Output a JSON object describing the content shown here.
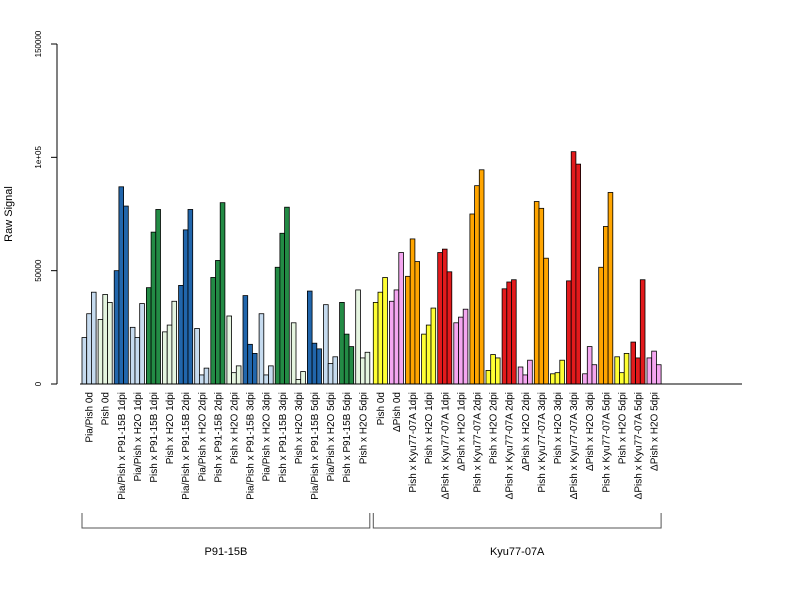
{
  "chart_data": {
    "type": "bar",
    "ylabel": "Raw Signal",
    "ylim": [
      0,
      150000
    ],
    "y_ticks": [
      {
        "value": 0,
        "label": "0"
      },
      {
        "value": 50000,
        "label": "50000"
      },
      {
        "value": 100000,
        "label": "1e+05"
      },
      {
        "value": 150000,
        "label": "150000"
      }
    ],
    "bar_border_color": "#000000",
    "groups": [
      {
        "label": "P91-15B",
        "categories": [
          {
            "label": "Pia/Pish 0d",
            "color": "#c6dbef",
            "values": [
              20500,
              31000,
              40500
            ]
          },
          {
            "label": "Pish 0d",
            "color": "#e5f5e0",
            "values": [
              28500,
              39500,
              36000
            ]
          },
          {
            "label": "Pia/Pish x P91-15B 1dpi",
            "color": "#2166ac",
            "values": [
              50000,
              87000,
              78500
            ]
          },
          {
            "label": "Pia/Pish x H2O 1dpi",
            "color": "#c6dbef",
            "values": [
              25000,
              20500,
              35500
            ]
          },
          {
            "label": "Pish x P91-15B 1dpi",
            "color": "#238b45",
            "values": [
              42500,
              67000,
              77000
            ]
          },
          {
            "label": "Pish x H2O 1dpi",
            "color": "#e5f5e0",
            "values": [
              23000,
              26000,
              36500
            ]
          },
          {
            "label": "Pia/Pish x P91-15B 2dpi",
            "color": "#2166ac",
            "values": [
              43500,
              68000,
              77000
            ]
          },
          {
            "label": "Pia/Pish x H2O 2dpi",
            "color": "#c6dbef",
            "values": [
              24500,
              4000,
              7000
            ]
          },
          {
            "label": "Pish x P91-15B 2dpi",
            "color": "#238b45",
            "values": [
              47000,
              54500,
              80000
            ]
          },
          {
            "label": "Pish x H2O 2dpi",
            "color": "#e5f5e0",
            "values": [
              30000,
              5000,
              8000
            ]
          },
          {
            "label": "Pia/Pish x P91-15B 3dpi",
            "color": "#2166ac",
            "values": [
              39000,
              17500,
              13500
            ]
          },
          {
            "label": "Pia/Pish x H2O 3dpi",
            "color": "#c6dbef",
            "values": [
              31000,
              4000,
              8000
            ]
          },
          {
            "label": "Pish x P91-15B 3dpi",
            "color": "#238b45",
            "values": [
              51500,
              66500,
              78000
            ]
          },
          {
            "label": "Pish x H2O 3dpi",
            "color": "#e5f5e0",
            "values": [
              27000,
              2000,
              5500
            ]
          },
          {
            "label": "Pia/Pish x P91-15B 5dpi",
            "color": "#2166ac",
            "values": [
              41000,
              18000,
              15500
            ]
          },
          {
            "label": "Pia/Pish x H2O 5dpi",
            "color": "#c6dbef",
            "values": [
              35000,
              9000,
              12000
            ]
          },
          {
            "label": "Pish x P91-15B 5dpi",
            "color": "#238b45",
            "values": [
              36000,
              22000,
              16500
            ]
          },
          {
            "label": "Pish x H2O 5dpi",
            "color": "#e5f5e0",
            "values": [
              41500,
              11500,
              14000
            ]
          }
        ]
      },
      {
        "label": "Kyu77-07A",
        "categories": [
          {
            "label": "Pish 0d",
            "color": "#ffff33",
            "values": [
              36000,
              40500,
              47000
            ]
          },
          {
            "label": "ΔPish 0d",
            "color": "#f4a6f0",
            "values": [
              36500,
              41500,
              58000
            ]
          },
          {
            "label": "Pish x Kyu77-07A 1dpi",
            "color": "#ffa500",
            "values": [
              47500,
              64000,
              54000
            ]
          },
          {
            "label": "Pish x H2O 1dpi",
            "color": "#ffff33",
            "values": [
              22000,
              26000,
              33500
            ]
          },
          {
            "label": "ΔPish x Kyu77-07A 1dpi",
            "color": "#e31a1c",
            "values": [
              58000,
              59500,
              49500
            ]
          },
          {
            "label": "ΔPish x H2O 1dpi",
            "color": "#f4a6f0",
            "values": [
              27000,
              29500,
              33000
            ]
          },
          {
            "label": "Pish x Kyu77-07A 2dpi",
            "color": "#ffa500",
            "values": [
              75000,
              87500,
              94500
            ]
          },
          {
            "label": "Pish x H2O 2dpi",
            "color": "#ffff33",
            "values": [
              6000,
              13000,
              11500
            ]
          },
          {
            "label": "ΔPish x Kyu77-07A 2dpi",
            "color": "#e31a1c",
            "values": [
              42000,
              45000,
              46000
            ]
          },
          {
            "label": "ΔPish x H2O 2dpi",
            "color": "#f4a6f0",
            "values": [
              7500,
              4000,
              10500
            ]
          },
          {
            "label": "Pish x Kyu77-07A 3dpi",
            "color": "#ffa500",
            "values": [
              80500,
              77500,
              55500
            ]
          },
          {
            "label": "Pish x H2O 3dpi",
            "color": "#ffff33",
            "values": [
              4500,
              5000,
              10500
            ]
          },
          {
            "label": "ΔPish x Kyu77-07A 3dpi",
            "color": "#e31a1c",
            "values": [
              45500,
              102500,
              97000
            ]
          },
          {
            "label": "ΔPish x H2O 3dpi",
            "color": "#f4a6f0",
            "values": [
              4500,
              16500,
              8500
            ]
          },
          {
            "label": "Pish x Kyu77-07A 5dpi",
            "color": "#ffa500",
            "values": [
              51500,
              69500,
              84500
            ]
          },
          {
            "label": "Pish x H2O 5dpi",
            "color": "#ffff33",
            "values": [
              12000,
              5000,
              13500
            ]
          },
          {
            "label": "ΔPish x Kyu77-07A 5dpi",
            "color": "#e31a1c",
            "values": [
              18500,
              11500,
              46000
            ]
          },
          {
            "label": "ΔPish x H2O 5dpi",
            "color": "#f4a6f0",
            "values": [
              11500,
              14500,
              8500
            ]
          }
        ]
      }
    ]
  }
}
